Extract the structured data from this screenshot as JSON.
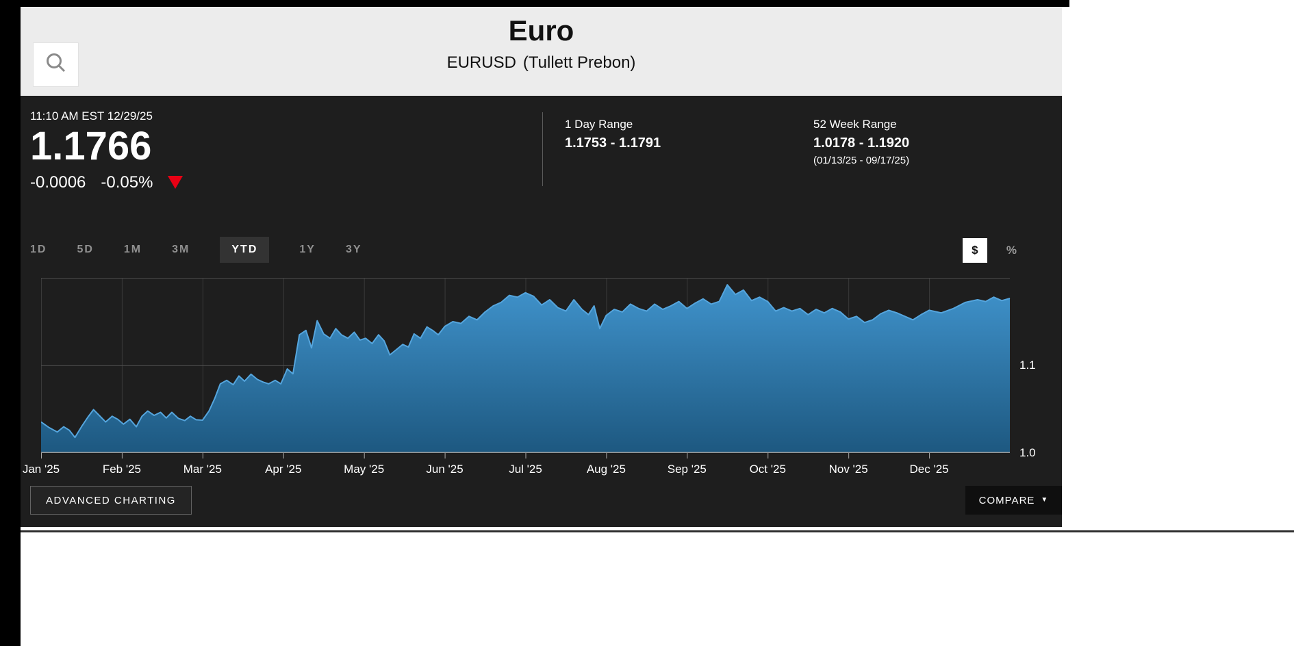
{
  "header": {
    "title": "Euro",
    "symbol": "EURUSD",
    "exchange": "(Tullett Prebon)"
  },
  "quote": {
    "timestamp": "11:10 AM EST 12/29/25",
    "price": "1.1766",
    "change": "-0.0006",
    "change_pct": "-0.05%",
    "direction": "down",
    "arrow_color": "#e80014"
  },
  "ranges": {
    "day": {
      "label": "1 Day Range",
      "value": "1.1753 - 1.1791"
    },
    "week52": {
      "label": "52 Week Range",
      "value": "1.0178 - 1.1920",
      "dates": "(01/13/25 - 09/17/25)"
    }
  },
  "toolbar": {
    "ranges": [
      "1D",
      "5D",
      "1M",
      "3M",
      "YTD",
      "1Y",
      "3Y"
    ],
    "active": "YTD",
    "unit_dollar": "$",
    "unit_percent": "%",
    "active_unit": "$"
  },
  "chart_data": {
    "type": "area",
    "title": "EURUSD year-to-date price",
    "x_unit": "months since Jan 1 2025",
    "x_max": 12,
    "x_labels": [
      "Jan '25",
      "Feb '25",
      "Mar '25",
      "Apr '25",
      "May '25",
      "Jun '25",
      "Jul '25",
      "Aug '25",
      "Sep '25",
      "Oct '25",
      "Nov '25",
      "Dec '25"
    ],
    "ylim": [
      1.0,
      1.2
    ],
    "yticks": [
      1.0,
      1.1
    ],
    "ytick_labels": [
      "1.0",
      "1.1"
    ],
    "grid": "horizontal and faint monthly verticals",
    "legend": "none",
    "line_color": "#55a5dd",
    "fill_top": "#4093cc",
    "fill_bottom": "#1d5880",
    "x": [
      0,
      0.1,
      0.2,
      0.28,
      0.35,
      0.42,
      0.5,
      0.58,
      0.65,
      0.72,
      0.8,
      0.88,
      0.95,
      1.02,
      1.1,
      1.18,
      1.25,
      1.32,
      1.4,
      1.48,
      1.55,
      1.62,
      1.7,
      1.78,
      1.85,
      1.92,
      2,
      2.08,
      2.15,
      2.22,
      2.3,
      2.38,
      2.45,
      2.52,
      2.6,
      2.68,
      2.75,
      2.82,
      2.9,
      2.97,
      3.05,
      3.12,
      3.2,
      3.28,
      3.35,
      3.42,
      3.5,
      3.58,
      3.65,
      3.72,
      3.8,
      3.88,
      3.95,
      4.02,
      4.1,
      4.18,
      4.25,
      4.32,
      4.4,
      4.48,
      4.55,
      4.62,
      4.7,
      4.78,
      4.85,
      4.92,
      5,
      5.1,
      5.2,
      5.3,
      5.4,
      5.5,
      5.6,
      5.7,
      5.8,
      5.9,
      6,
      6.1,
      6.2,
      6.3,
      6.4,
      6.5,
      6.6,
      6.7,
      6.78,
      6.85,
      6.92,
      7,
      7.1,
      7.2,
      7.3,
      7.4,
      7.5,
      7.6,
      7.7,
      7.8,
      7.9,
      8,
      8.1,
      8.2,
      8.3,
      8.4,
      8.5,
      8.6,
      8.7,
      8.8,
      8.9,
      9,
      9.1,
      9.2,
      9.3,
      9.4,
      9.5,
      9.6,
      9.7,
      9.8,
      9.9,
      10,
      10.1,
      10.2,
      10.3,
      10.4,
      10.5,
      10.6,
      10.7,
      10.8,
      10.9,
      11,
      11.15,
      11.3,
      11.45,
      11.6,
      11.7,
      11.8,
      11.9,
      12
    ],
    "values": [
      1.0355,
      1.029,
      1.024,
      1.03,
      1.026,
      1.0178,
      1.03,
      1.041,
      1.0495,
      1.043,
      1.0355,
      1.042,
      1.0385,
      1.033,
      1.0385,
      1.03,
      1.042,
      1.048,
      1.043,
      1.0465,
      1.04,
      1.0465,
      1.0395,
      1.037,
      1.042,
      1.038,
      1.0375,
      1.048,
      1.062,
      1.079,
      1.083,
      1.078,
      1.088,
      1.082,
      1.09,
      1.084,
      1.081,
      1.079,
      1.083,
      1.079,
      1.096,
      1.0905,
      1.135,
      1.14,
      1.12,
      1.151,
      1.136,
      1.131,
      1.142,
      1.135,
      1.131,
      1.138,
      1.129,
      1.131,
      1.125,
      1.135,
      1.128,
      1.112,
      1.118,
      1.124,
      1.121,
      1.136,
      1.131,
      1.144,
      1.14,
      1.135,
      1.1445,
      1.15,
      1.148,
      1.156,
      1.152,
      1.161,
      1.168,
      1.172,
      1.18,
      1.178,
      1.183,
      1.179,
      1.169,
      1.175,
      1.166,
      1.162,
      1.175,
      1.164,
      1.158,
      1.168,
      1.142,
      1.157,
      1.164,
      1.161,
      1.17,
      1.165,
      1.162,
      1.17,
      1.164,
      1.168,
      1.173,
      1.165,
      1.171,
      1.176,
      1.17,
      1.173,
      1.192,
      1.181,
      1.186,
      1.174,
      1.178,
      1.173,
      1.162,
      1.166,
      1.162,
      1.165,
      1.158,
      1.164,
      1.16,
      1.165,
      1.161,
      1.153,
      1.156,
      1.149,
      1.152,
      1.159,
      1.163,
      1.16,
      1.156,
      1.152,
      1.158,
      1.163,
      1.16,
      1.165,
      1.172,
      1.175,
      1.173,
      1.178,
      1.174,
      1.1766
    ]
  },
  "footer": {
    "advanced_button": "ADVANCED CHARTING",
    "compare_button": "COMPARE"
  }
}
